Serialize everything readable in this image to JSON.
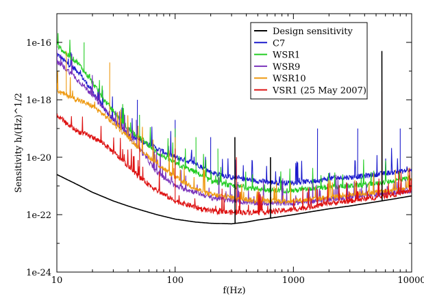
{
  "chart_data": {
    "type": "line",
    "title": "",
    "xlabel": "f(Hz)",
    "ylabel": "Sensitivity h/(Hz)^1/2",
    "x_scale": "log",
    "y_scale": "log",
    "xlim": [
      10,
      10000
    ],
    "ylim": [
      1e-24,
      1e-15
    ],
    "x_ticks": [
      10,
      100,
      1000,
      10000
    ],
    "x_tick_labels": [
      "10",
      "100",
      "1000",
      "10000"
    ],
    "y_ticks": [
      1e-24,
      1e-22,
      1e-20,
      1e-18,
      1e-16
    ],
    "y_tick_labels": [
      "1e-24",
      "1e-22",
      "1e-20",
      "1e-18",
      "1e-16"
    ],
    "grid": false,
    "legend_position": "top-right",
    "series": [
      {
        "name": "Design sensitivity",
        "color": "#000000",
        "x": [
          10,
          15,
          20,
          30,
          40,
          50,
          70,
          100,
          150,
          200,
          300,
          400,
          500,
          700,
          1000,
          2000,
          3000,
          5000,
          7000,
          10000
        ],
        "y": [
          2.5e-21,
          1.1e-21,
          6e-22,
          3e-22,
          2e-22,
          1.5e-22,
          1e-22,
          7e-23,
          5.5e-23,
          5e-23,
          4.8e-23,
          5.5e-23,
          6.5e-23,
          8e-23,
          1e-22,
          1.6e-22,
          2e-22,
          2.8e-22,
          3.5e-22,
          4.5e-22
        ],
        "spikes": [
          {
            "x": 320,
            "y": 5e-20
          },
          {
            "x": 640,
            "y": 1e-20
          },
          {
            "x": 5600,
            "y": 5e-17
          }
        ]
      },
      {
        "name": "C7",
        "color": "#1a1acc",
        "x": [
          10,
          12,
          15,
          20,
          25,
          30,
          40,
          50,
          70,
          100,
          150,
          200,
          300,
          500,
          700,
          1000,
          1500,
          2000,
          3000,
          5000,
          7000,
          10000
        ],
        "y": [
          4e-17,
          2e-17,
          1e-17,
          2e-18,
          5e-19,
          2e-19,
          6e-20,
          4e-20,
          2e-20,
          1e-20,
          6e-21,
          3e-21,
          2e-21,
          1.5e-21,
          1.3e-21,
          1.3e-21,
          1.5e-21,
          1.8e-21,
          2e-21,
          2.5e-21,
          3e-21,
          3.5e-21
        ],
        "spikes": [
          {
            "x": 48,
            "y": 1e-18
          },
          {
            "x": 100,
            "y": 2e-19
          },
          {
            "x": 200,
            "y": 5e-20
          },
          {
            "x": 1600,
            "y": 1e-19
          },
          {
            "x": 3500,
            "y": 1e-19
          },
          {
            "x": 8000,
            "y": 1e-19
          }
        ]
      },
      {
        "name": "WSR1",
        "color": "#22cc22",
        "x": [
          10,
          12,
          15,
          20,
          25,
          30,
          40,
          50,
          70,
          100,
          150,
          200,
          300,
          500,
          700,
          1000,
          1500,
          2000,
          3000,
          5000,
          7000,
          10000
        ],
        "y": [
          8e-17,
          4e-17,
          2e-17,
          4e-18,
          1e-18,
          4e-19,
          1e-19,
          5e-20,
          1.5e-20,
          6e-21,
          3e-21,
          1.5e-21,
          1e-21,
          8e-22,
          7e-22,
          7e-22,
          8e-22,
          9e-22,
          1e-21,
          1.2e-21,
          1.5e-21,
          2e-21
        ],
        "spikes": [
          {
            "x": 17,
            "y": 1e-16
          },
          {
            "x": 50,
            "y": 3e-19
          },
          {
            "x": 100,
            "y": 1e-19
          },
          {
            "x": 150,
            "y": 5e-20
          },
          {
            "x": 230,
            "y": 2e-20
          }
        ]
      },
      {
        "name": "WSR9",
        "color": "#7a33bb",
        "x": [
          10,
          12,
          15,
          20,
          25,
          30,
          40,
          50,
          70,
          100,
          150,
          200,
          300,
          500,
          700,
          1000,
          1500,
          2000,
          3000,
          5000,
          7000,
          10000
        ],
        "y": [
          2e-17,
          1.2e-17,
          5e-18,
          1.5e-18,
          5e-19,
          2e-19,
          6e-20,
          2e-20,
          3e-21,
          1e-21,
          6e-22,
          4e-22,
          3e-22,
          2.5e-22,
          2.5e-22,
          2.5e-22,
          3e-22,
          3.5e-22,
          4e-22,
          5e-22,
          6e-22,
          7e-22
        ],
        "spikes": [
          {
            "x": 47,
            "y": 2e-19
          },
          {
            "x": 75,
            "y": 2e-20
          }
        ]
      },
      {
        "name": "WSR10",
        "color": "#ee9911",
        "x": [
          10,
          12,
          15,
          20,
          25,
          30,
          40,
          50,
          70,
          100,
          150,
          200,
          300,
          500,
          700,
          1000,
          1500,
          2000,
          3000,
          5000,
          7000,
          10000
        ],
        "y": [
          2e-18,
          1.5e-18,
          1e-18,
          6e-19,
          3e-19,
          1.5e-19,
          5e-20,
          2e-20,
          6e-21,
          2e-21,
          8e-22,
          5e-22,
          4e-22,
          3e-22,
          3e-22,
          3e-22,
          3.5e-22,
          4e-22,
          5e-22,
          6e-22,
          7e-22,
          9e-22
        ],
        "spikes": [
          {
            "x": 12,
            "y": 5e-17
          },
          {
            "x": 28,
            "y": 2e-17
          },
          {
            "x": 100,
            "y": 5e-20
          }
        ]
      },
      {
        "name": "VSR1 (25 May 2007)",
        "color": "#dd1111",
        "x": [
          10,
          12,
          15,
          20,
          25,
          30,
          40,
          50,
          70,
          100,
          150,
          200,
          300,
          500,
          700,
          1000,
          1500,
          2000,
          3000,
          5000,
          7000,
          10000
        ],
        "y": [
          3e-19,
          1.5e-19,
          8e-20,
          5e-20,
          3e-20,
          1.5e-20,
          5e-21,
          2e-21,
          7e-22,
          3e-22,
          1.8e-22,
          1.3e-22,
          1.2e-22,
          1.2e-22,
          1.3e-22,
          1.5e-22,
          2e-22,
          2.5e-22,
          3e-22,
          4e-22,
          5e-22,
          7e-22
        ],
        "spikes": [
          {
            "x": 50,
            "y": 5e-20
          },
          {
            "x": 100,
            "y": 2e-20
          },
          {
            "x": 330,
            "y": 1e-20
          },
          {
            "x": 5600,
            "y": 2e-18
          }
        ]
      }
    ]
  }
}
